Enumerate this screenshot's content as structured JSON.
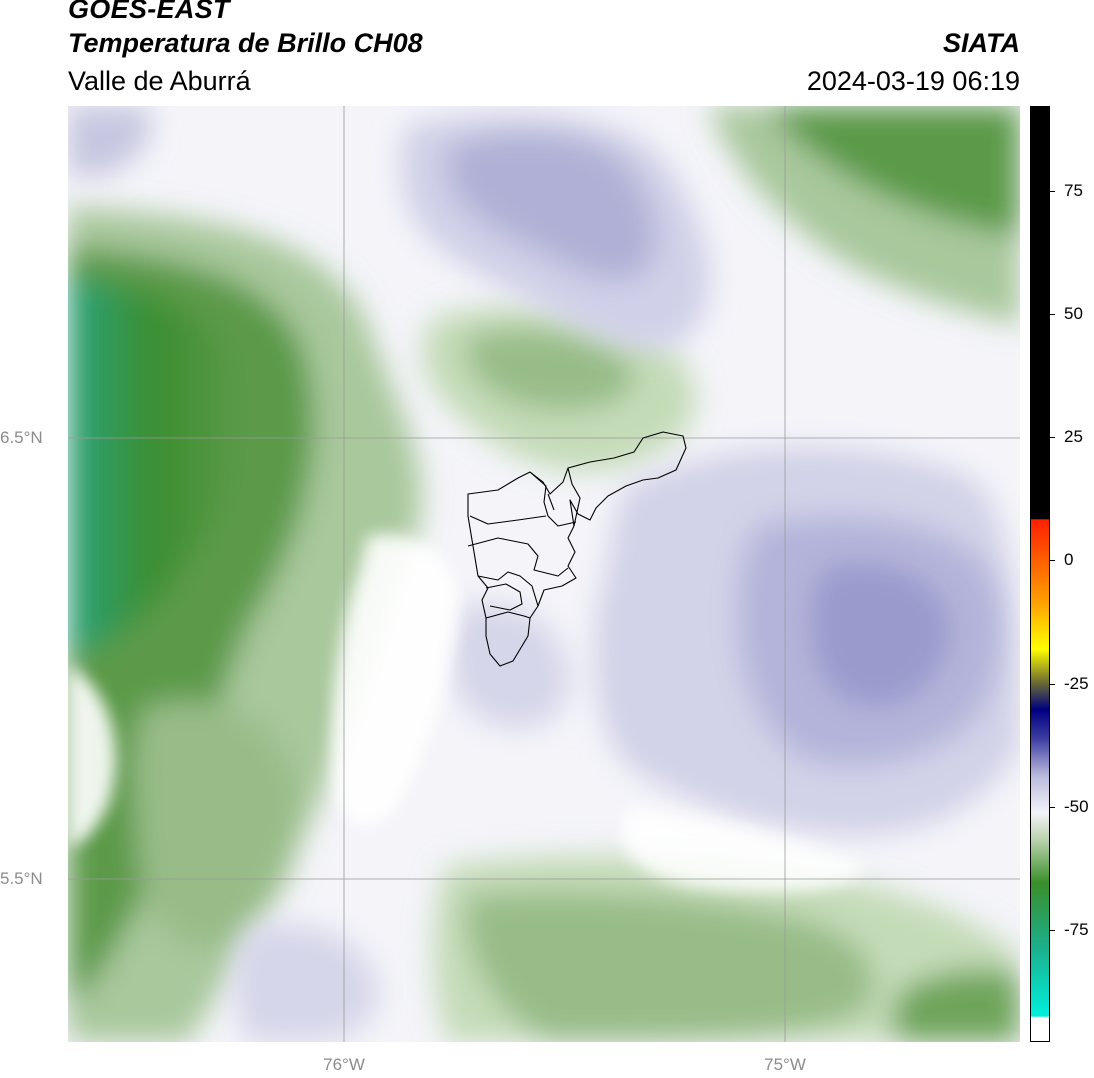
{
  "title": {
    "satellite": "GOES-EAST",
    "product": "Temperatura de Brillo CH08",
    "region": "Valle de Aburrá",
    "brand": "SIATA",
    "timestamp": "2024-03-19 06:19"
  },
  "map": {
    "grid": {
      "lat_labels": [
        "6.5°N",
        "5.5°N"
      ],
      "lon_labels": [
        "76°W",
        "75°W"
      ]
    },
    "overlay": "Valle de Aburrá municipality boundaries",
    "field_colors": {
      "dark_green": "#2e7d26",
      "mid_green": "#5c9a4a",
      "light_green": "#a9c89c",
      "pale_green": "#dbe9d4",
      "white": "#ffffff",
      "pale_purple": "#e6e6f2",
      "light_purple": "#c6c6e0",
      "mid_purple": "#a0a0cf",
      "teal": "#2aa37a"
    }
  },
  "colorbar": {
    "labels": [
      "75",
      "50",
      "25",
      "0",
      "-25",
      "-50",
      "-75"
    ],
    "range": [
      -93,
      90
    ],
    "colors": [
      "#ffffff",
      "#00f0dc",
      "#1bb08c",
      "#3a8f2a",
      "#b8d2ac",
      "#f2f2f8",
      "#b8b8dc",
      "#3a3aa0",
      "#000080",
      "#707030",
      "#ffff00",
      "#ffa000",
      "#ff2000",
      "#000000"
    ]
  }
}
